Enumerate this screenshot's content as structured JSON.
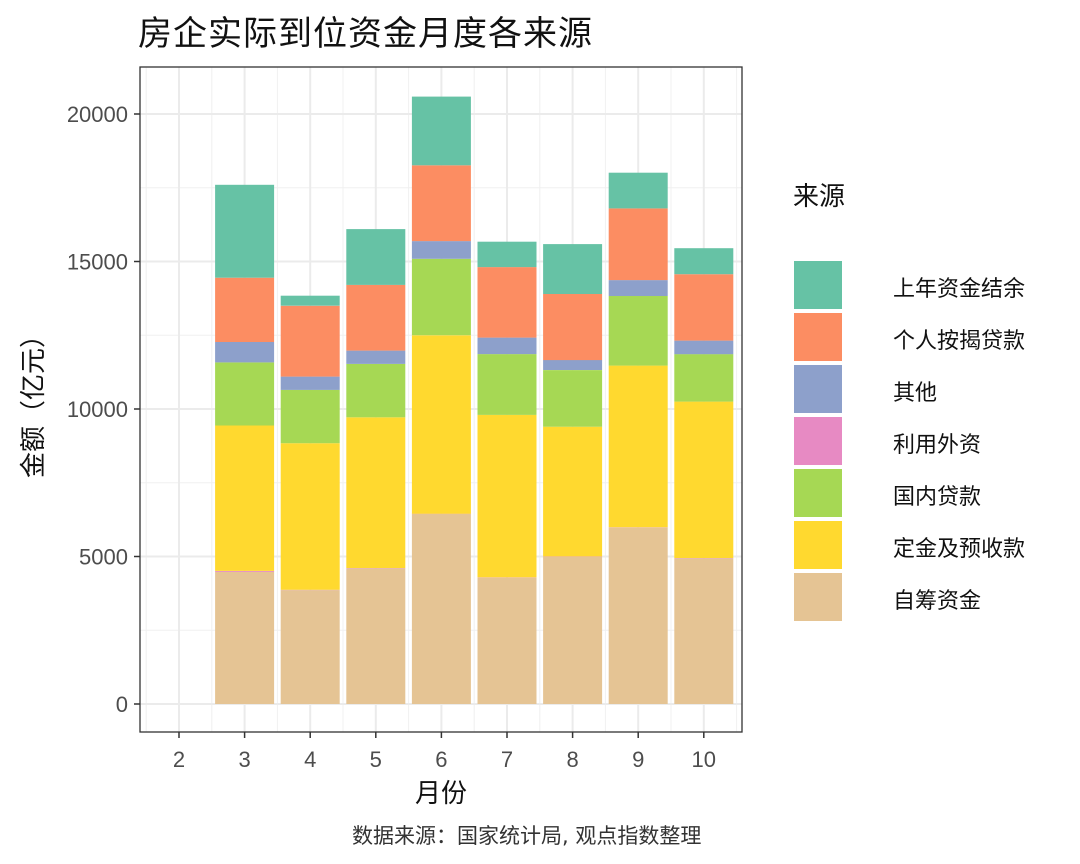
{
  "title": "房企实际到位资金月度各来源",
  "legend": {
    "title": "来源",
    "items": [
      {
        "label": "上年资金结余",
        "color": "#66C2A5"
      },
      {
        "label": "个人按揭贷款",
        "color": "#FC8D62"
      },
      {
        "label": "其他",
        "color": "#8DA0CB"
      },
      {
        "label": "利用外资",
        "color": "#E78AC3"
      },
      {
        "label": "国内贷款",
        "color": "#A6D854"
      },
      {
        "label": "定金及预收款",
        "color": "#FFD92F"
      },
      {
        "label": "自筹资金",
        "color": "#E5C494"
      }
    ]
  },
  "caption": "数据来源：国家统计局, 观点指数整理",
  "chart_data": {
    "type": "bar",
    "stacked": true,
    "title": "房企实际到位资金月度各来源",
    "xlabel": "月份",
    "ylabel": "金额（亿元）",
    "x_ticks": [
      2,
      3,
      4,
      5,
      6,
      7,
      8,
      9,
      10
    ],
    "y_ticks": [
      0,
      5000,
      10000,
      15000,
      20000
    ],
    "xlim": [
      1.5,
      10.6
    ],
    "ylim": [
      -950,
      21500
    ],
    "grid": true,
    "legend_position": "right",
    "categories": [
      3,
      4,
      5,
      6,
      7,
      8,
      9,
      10
    ],
    "series": [
      {
        "name": "自筹资金",
        "color": "#E5C494",
        "values": [
          4480,
          3860,
          4600,
          6440,
          4280,
          4990,
          5980,
          4940
        ]
      },
      {
        "name": "利用外资",
        "color": "#E78AC3",
        "values": [
          30,
          10,
          10,
          10,
          10,
          10,
          10,
          10
        ]
      },
      {
        "name": "定金及预收款",
        "color": "#FFD92F",
        "values": [
          4930,
          4970,
          5110,
          6050,
          5510,
          4400,
          5480,
          5300
        ]
      },
      {
        "name": "国内贷款",
        "color": "#A6D854",
        "values": [
          2140,
          1810,
          1810,
          2590,
          2060,
          1920,
          2360,
          1610
        ]
      },
      {
        "name": "其他",
        "color": "#8DA0CB",
        "values": [
          690,
          450,
          450,
          600,
          560,
          340,
          540,
          460
        ]
      },
      {
        "name": "个人按揭贷款",
        "color": "#FC8D62",
        "values": [
          2180,
          2400,
          2230,
          2570,
          2390,
          2240,
          2430,
          2250
        ]
      },
      {
        "name": "上年资金结余",
        "color": "#66C2A5",
        "values": [
          3150,
          340,
          1890,
          2330,
          860,
          1690,
          1210,
          880
        ]
      }
    ],
    "totals": [
      17600,
      13840,
      16100,
      20590,
      15670,
      15590,
      18010,
      15450
    ]
  }
}
